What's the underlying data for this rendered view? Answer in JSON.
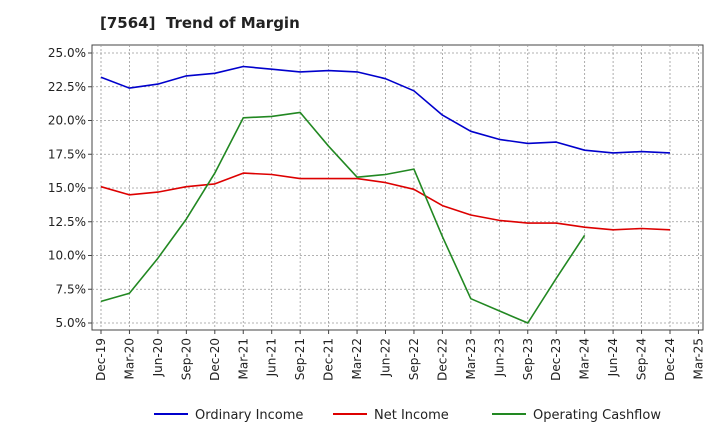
{
  "chart_data": {
    "type": "line",
    "title": "[7564]  Trend of Margin",
    "xlabel": "",
    "ylabel": "",
    "x_ticks": [
      "Dec-19",
      "Mar-20",
      "Jun-20",
      "Sep-20",
      "Dec-20",
      "Mar-21",
      "Jun-21",
      "Sep-21",
      "Dec-21",
      "Mar-22",
      "Jun-22",
      "Sep-22",
      "Dec-22",
      "Mar-23",
      "Jun-23",
      "Sep-23",
      "Dec-23",
      "Mar-24",
      "Jun-24",
      "Sep-24",
      "Dec-24",
      "Mar-25"
    ],
    "y_ticks": [
      "5.0%",
      "7.5%",
      "10.0%",
      "12.5%",
      "15.0%",
      "17.5%",
      "20.0%",
      "22.5%",
      "25.0%"
    ],
    "ylim": [
      5.0,
      25.0
    ],
    "grid": true,
    "legend_position": "bottom",
    "series": [
      {
        "name": "Ordinary Income",
        "color": "#0000cc",
        "values": [
          23.2,
          22.4,
          22.7,
          23.3,
          23.5,
          24.0,
          23.8,
          23.6,
          23.7,
          23.6,
          23.1,
          22.2,
          20.4,
          19.2,
          18.6,
          18.3,
          18.4,
          17.8,
          17.6,
          17.7,
          17.6,
          null
        ]
      },
      {
        "name": "Net Income",
        "color": "#dd0000",
        "values": [
          15.1,
          14.5,
          14.7,
          15.1,
          15.3,
          16.1,
          16.0,
          15.7,
          15.7,
          15.7,
          15.4,
          14.9,
          13.7,
          13.0,
          12.6,
          12.4,
          12.4,
          12.1,
          11.9,
          12.0,
          11.9,
          null
        ]
      },
      {
        "name": "Operating Cashflow",
        "color": "#228822",
        "values": [
          6.6,
          7.2,
          9.8,
          12.7,
          16.1,
          20.2,
          20.3,
          20.6,
          18.1,
          15.8,
          16.0,
          16.4,
          11.4,
          6.8,
          5.9,
          5.0,
          8.3,
          11.5,
          null,
          null,
          null,
          null
        ]
      }
    ]
  }
}
